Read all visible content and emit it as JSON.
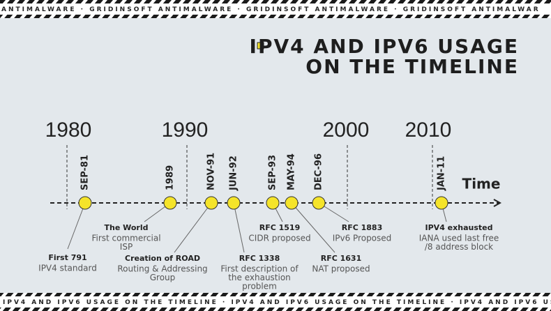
{
  "top_banner": "ANTIMALWARE · GRIDINSOFT ANTIMALWARE · GRIDINSOFT ANTIMALWARE · GRIDINSOFT ANTIMALWAR",
  "bottom_banner": "IPV4 AND IPV6 USAGE ON THE TIMELINE · IPV4 AND IPV6 USAGE ON THE TIMELINE · IPV4 AND IPV6 USAGE ON THE TIMELINE · IPV4 AND IPV6 USAGE ON T",
  "title": [
    "IPV4 AND IPV6 USAGE",
    "ON THE TIMELINE"
  ],
  "axis_label": "Time",
  "decades": [
    "1980",
    "1990",
    "2000",
    "2010"
  ],
  "events": [
    {
      "date": "SEP-81",
      "title": "First 791",
      "description": [
        "IPV4 standard"
      ]
    },
    {
      "date": "1989",
      "title": "The World",
      "description": [
        "First commercial",
        "ISP"
      ]
    },
    {
      "date": "NOV-91",
      "title": "Creation of ROAD",
      "description": [
        "Routing & Addressing",
        "Group"
      ]
    },
    {
      "date": "JUN-92",
      "title": "RFC 1338",
      "description": [
        "First description of",
        "the exhaustion",
        "problem"
      ]
    },
    {
      "date": "SEP-93",
      "title": "RFC 1519",
      "description": [
        "CIDR proposed"
      ]
    },
    {
      "date": "MAY-94",
      "title": "RFC 1631",
      "description": [
        "NAT proposed"
      ]
    },
    {
      "date": "DEC-96",
      "title": "RFC 1883",
      "description": [
        "IPv6 Proposed"
      ]
    },
    {
      "date": "JAN-11",
      "title": "IPV4 exhausted",
      "description": [
        "IANA used last free",
        "/8 address block"
      ]
    }
  ]
}
